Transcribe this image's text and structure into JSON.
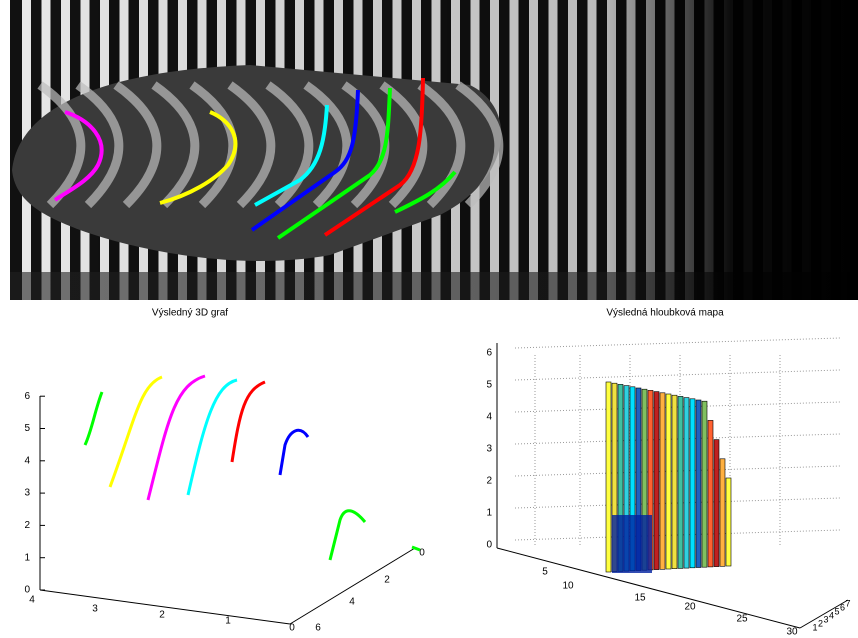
{
  "left_plot": {
    "title": "Výsledný 3D graf",
    "z_ticks": [
      0,
      1,
      2,
      3,
      4,
      5,
      6
    ],
    "x_ticks": [
      4,
      3,
      2,
      1,
      0
    ],
    "y_ticks": [
      0,
      2,
      4,
      6
    ]
  },
  "right_plot": {
    "title": "Výsledná hloubková mapa",
    "z_ticks": [
      0,
      1,
      2,
      3,
      4,
      5,
      6
    ],
    "x_ticks": [
      5,
      10,
      15,
      20,
      25,
      30
    ],
    "y_ticks": [
      1,
      2,
      3,
      4,
      5,
      6,
      7
    ]
  }
}
